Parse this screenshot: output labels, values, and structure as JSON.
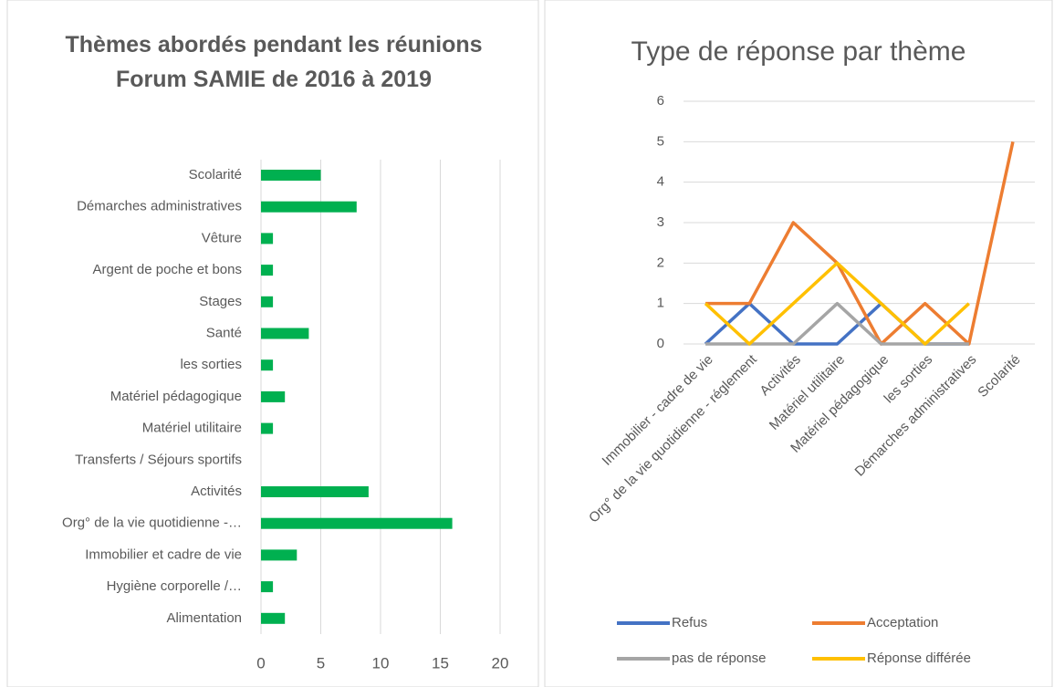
{
  "chart_data": [
    {
      "type": "hbar",
      "title": "Thèmes abordés pendant les réunions Forum SAMIE  de 2016 à 2019",
      "categories": [
        "Scolarité",
        "Démarches administratives",
        "Vêture",
        "Argent de poche et bons",
        "Stages",
        "Santé",
        "les sorties",
        "Matériel pédagogique",
        "Matériel utilitaire",
        "Transferts / Séjours sportifs",
        "Activités",
        "Org° de la vie quotidienne -…",
        "Immobilier et cadre de vie",
        "Hygiène corporelle /…",
        "Alimentation"
      ],
      "values": [
        5,
        8,
        1,
        1,
        1,
        4,
        1,
        2,
        1,
        0,
        9,
        16,
        3,
        1,
        2
      ],
      "color": "#00b050",
      "xlim": [
        0,
        20
      ],
      "xticks": [
        0,
        5,
        10,
        15,
        20
      ],
      "grid": true
    },
    {
      "type": "line",
      "title": "Type de réponse par thème",
      "categories": [
        "Immobilier - cadre de vie",
        "Org° de la vie quotidienne - réglement",
        "Activités",
        "Matériel utilitaire",
        "Matériel pédagogique",
        "les sorties",
        "Démarches administratives",
        "Scolarité"
      ],
      "series": [
        {
          "name": "Refus",
          "color": "#4472c4",
          "values": [
            0,
            1,
            0,
            0,
            1,
            0,
            0,
            null
          ]
        },
        {
          "name": "Acceptation",
          "color": "#ed7d31",
          "values": [
            1,
            1,
            3,
            2,
            0,
            1,
            0,
            5
          ]
        },
        {
          "name": "pas de réponse",
          "color": "#a5a5a5",
          "values": [
            0,
            0,
            0,
            1,
            0,
            0,
            0,
            null
          ]
        },
        {
          "name": "Réponse différée",
          "color": "#ffc000",
          "values": [
            1,
            0,
            1,
            2,
            1,
            0,
            1,
            null
          ]
        }
      ],
      "ylim": [
        0,
        6
      ],
      "yticks": [
        0,
        1,
        2,
        3,
        4,
        5,
        6
      ],
      "grid": true,
      "legend": "bottom"
    }
  ]
}
